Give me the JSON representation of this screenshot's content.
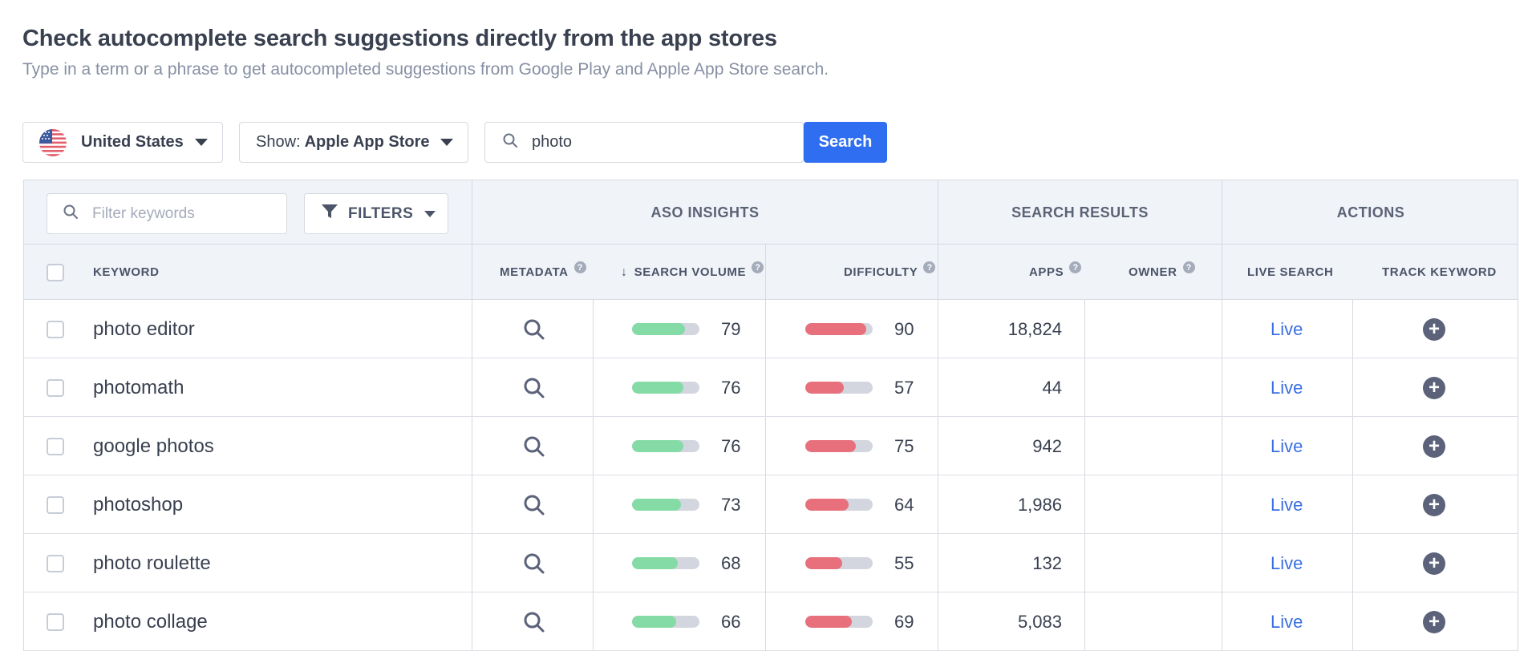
{
  "header": {
    "title": "Check autocomplete search suggestions directly from the app stores",
    "subtitle": "Type in a term or a phrase to get autocompleted suggestions from Google Play and Apple App Store search."
  },
  "controls": {
    "country": "United States",
    "store_prefix": "Show:",
    "store_value": "Apple App Store",
    "search_value": "photo",
    "search_button": "Search"
  },
  "table": {
    "filter_placeholder": "Filter keywords",
    "filters_label": "FILTERS",
    "groups": {
      "aso": "ASO INSIGHTS",
      "search_results": "SEARCH RESULTS",
      "actions": "ACTIONS"
    },
    "columns": {
      "keyword": "KEYWORD",
      "metadata": "METADATA",
      "search_volume": "SEARCH VOLUME",
      "difficulty": "DIFFICULTY",
      "apps": "APPS",
      "owner": "OWNER",
      "live_search": "LIVE SEARCH",
      "track_keyword": "TRACK KEYWORD"
    },
    "help_glyph": "?",
    "rows": [
      {
        "keyword": "photo editor",
        "volume": "79",
        "difficulty": "90",
        "apps": "18,824",
        "live": "Live"
      },
      {
        "keyword": "photomath",
        "volume": "76",
        "difficulty": "57",
        "apps": "44",
        "live": "Live"
      },
      {
        "keyword": "google photos",
        "volume": "76",
        "difficulty": "75",
        "apps": "942",
        "live": "Live"
      },
      {
        "keyword": "photoshop",
        "volume": "73",
        "difficulty": "64",
        "apps": "1,986",
        "live": "Live"
      },
      {
        "keyword": "photo roulette",
        "volume": "68",
        "difficulty": "55",
        "apps": "132",
        "live": "Live"
      },
      {
        "keyword": "photo collage",
        "volume": "66",
        "difficulty": "69",
        "apps": "5,083",
        "live": "Live"
      }
    ]
  },
  "colors": {
    "accent": "#2f6ef0",
    "volume_bar": "#84dba6",
    "difficulty_bar": "#e8707c",
    "link": "#3a6fe0"
  }
}
